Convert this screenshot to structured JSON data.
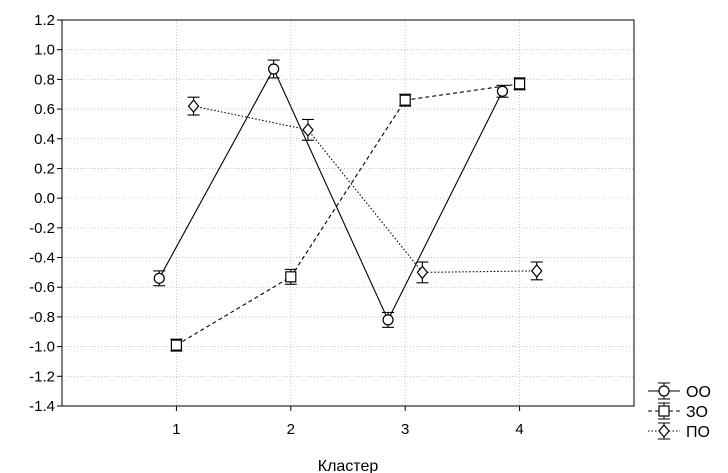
{
  "chart_data": {
    "type": "line",
    "xlabel": "Кластер",
    "ylabel": "",
    "categories": [
      "1",
      "2",
      "3",
      "4"
    ],
    "xlim": [
      0,
      5
    ],
    "ylim": [
      -1.4,
      1.2
    ],
    "yticks": [
      "-1.4",
      "-1.2",
      "-1.0",
      "-0.8",
      "-0.6",
      "-0.4",
      "-0.2",
      "0.0",
      "0.2",
      "0.4",
      "0.6",
      "0.8",
      "1.0",
      "1.2"
    ],
    "grid": true,
    "legend_position": "bottom-right-outside",
    "series": [
      {
        "name": "ОО",
        "marker": "circle",
        "line": "solid",
        "x": [
          0.85,
          1.85,
          2.85,
          3.85
        ],
        "values": [
          -0.54,
          0.87,
          -0.82,
          0.72
        ],
        "errors": [
          0.05,
          0.06,
          0.05,
          0.04
        ]
      },
      {
        "name": "ЗО",
        "marker": "square",
        "line": "dashed",
        "x": [
          1.0,
          2.0,
          3.0,
          4.0
        ],
        "values": [
          -0.99,
          -0.53,
          0.66,
          0.77
        ],
        "errors": [
          0.04,
          0.05,
          0.04,
          0.04
        ]
      },
      {
        "name": "ПО",
        "marker": "diamond",
        "line": "dotted",
        "x": [
          1.15,
          2.15,
          3.15,
          4.15
        ],
        "values": [
          0.62,
          0.46,
          -0.5,
          -0.49
        ],
        "errors": [
          0.06,
          0.07,
          0.07,
          0.06
        ]
      }
    ]
  }
}
